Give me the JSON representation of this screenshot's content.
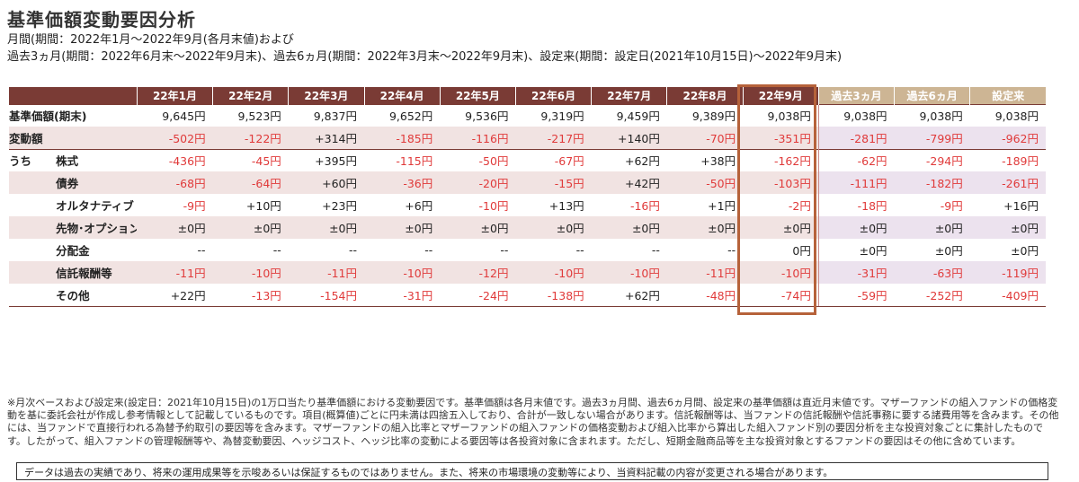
{
  "title": "基準価額変動要因分析",
  "subtitle1": "月間(期間：2022年1月～2022年9月(各月末値)および",
  "subtitle2": "過去3ヵ月(期間：2022年6月末～2022年9月末)、過去6ヵ月(期間：2022年3月末～2022年9月末)、設定来(期間：設定日(2021年10月15日)～2022年9月末)",
  "columns": {
    "months": [
      "22年1月",
      "22年2月",
      "22年3月",
      "22年4月",
      "22年5月",
      "22年6月",
      "22年7月",
      "22年8月",
      "22年9月"
    ],
    "periods": [
      "過去3ヵ月",
      "過去6ヵ月",
      "設定来"
    ]
  },
  "rows": [
    {
      "label": "基準価額(期末)",
      "values": [
        "9,645円",
        "9,523円",
        "9,837円",
        "9,652円",
        "9,536円",
        "9,319円",
        "9,459円",
        "9,389円",
        "9,038円",
        "9,038円",
        "9,038円",
        "9,038円"
      ]
    },
    {
      "label": "変動額",
      "values": [
        "-502円",
        "-122円",
        "+314円",
        "-185円",
        "-116円",
        "-217円",
        "+140円",
        "-70円",
        "-351円",
        "-281円",
        "-799円",
        "-962円"
      ]
    },
    {
      "prefix": "うち",
      "label": "株式",
      "values": [
        "-436円",
        "-45円",
        "+395円",
        "-115円",
        "-50円",
        "-67円",
        "+62円",
        "+38円",
        "-162円",
        "-62円",
        "-294円",
        "-189円"
      ]
    },
    {
      "label": "債券",
      "values": [
        "-68円",
        "-64円",
        "+60円",
        "-36円",
        "-20円",
        "-15円",
        "+42円",
        "-50円",
        "-103円",
        "-111円",
        "-182円",
        "-261円"
      ]
    },
    {
      "label": "オルタナティブ",
      "values": [
        "-9円",
        "+10円",
        "+23円",
        "+6円",
        "-10円",
        "+13円",
        "-16円",
        "+1円",
        "-2円",
        "-18円",
        "-9円",
        "+16円"
      ]
    },
    {
      "label": "先物･オプション",
      "values": [
        "±0円",
        "±0円",
        "±0円",
        "±0円",
        "±0円",
        "±0円",
        "±0円",
        "±0円",
        "±0円",
        "±0円",
        "±0円",
        "±0円"
      ]
    },
    {
      "label": "分配金",
      "values": [
        "--",
        "--",
        "--",
        "--",
        "--",
        "--",
        "--",
        "--",
        "0円",
        "±0円",
        "±0円",
        "±0円"
      ]
    },
    {
      "label": "信託報酬等",
      "values": [
        "-11円",
        "-10円",
        "-11円",
        "-10円",
        "-12円",
        "-10円",
        "-10円",
        "-11円",
        "-10円",
        "-31円",
        "-63円",
        "-119円"
      ]
    },
    {
      "label": "その他",
      "values": [
        "+22円",
        "-13円",
        "-154円",
        "-31円",
        "-24円",
        "-138円",
        "+62円",
        "-48円",
        "-74円",
        "-59円",
        "-252円",
        "-409円"
      ]
    }
  ],
  "notes": "※月次ベースおよび設定来(設定日：2021年10月15日)の1万口当たり基準価額における変動要因です。基準価額は各月末値です。過去3ヵ月間、過去6ヵ月間、設定来の基準価額は直近月末値です。マザーファンドの組入ファンドの価格変動を基に委託会社が作成し参考情報として記載しているものです。項目(概算値)ごとに円未満は四捨五入しており、合計が一致しない場合があります。信託報酬等は、当ファンドの信託報酬や信託事務に要する諸費用等を含みます。その他には、当ファンドで直接行われる為替予約取引の要因等を含みます。マザーファンドの組入比率とマザーファンドの組入ファンドの価格変動および組入比率から算出した組入ファンド別の要因分析を主な投資対象ごとに集計したものです。したがって、組入ファンドの管理報酬等や、為替変動要因、ヘッジコスト、ヘッジ比率の変動による要因等は各投資対象に含まれます。ただし、短期金融商品等を主な投資対象とするファンドの要因はその他に含めています。",
  "disclaimer": "データは過去の実績であり、将来の運用成果等を示唆あるいは保証するものではありません。また、将来の市場環境の変動等により、当資料記載の内容が変更される場合があります。",
  "colors": {
    "header_dark": "#7a3b35",
    "header_light": "#cdb594",
    "negative": "#e03a3a",
    "highlight_border": "#b6623a",
    "row_shade": "#f1e3e2"
  }
}
